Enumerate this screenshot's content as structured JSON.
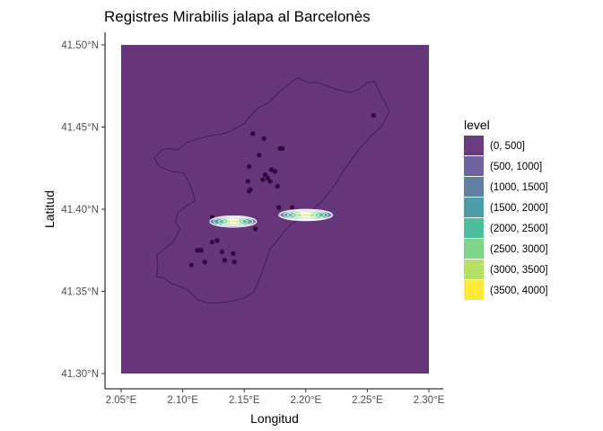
{
  "chart_data": {
    "type": "map",
    "title": "Registres Mirabilis jalapa al Barcelonès",
    "xlabel": "Longitud",
    "ylabel": "Latitud",
    "xlim": [
      2.05,
      2.3
    ],
    "ylim": [
      41.3,
      41.5
    ],
    "x_ticks": [
      2.05,
      2.1,
      2.15,
      2.2,
      2.25,
      2.3
    ],
    "x_tick_labels": [
      "2.05°E",
      "2.10°E",
      "2.15°E",
      "2.20°E",
      "2.25°E",
      "2.30°E"
    ],
    "y_ticks": [
      41.3,
      41.35,
      41.4,
      41.45,
      41.5
    ],
    "y_tick_labels": [
      "41.30°N",
      "41.35°N",
      "41.40°N",
      "41.45°N",
      "41.50°N"
    ],
    "grid": false,
    "legend": {
      "title": "level",
      "placement": "right",
      "entries": [
        "(0, 500]",
        "(500, 1000]",
        "(1000, 1500]",
        "(1500, 2000]",
        "(2000, 2500]",
        "(2500, 3000]",
        "(3000, 3500]",
        "(3500, 4000]"
      ],
      "colors": [
        "#6a3b7e",
        "#6f62a0",
        "#5f7fa5",
        "#4b9ea8",
        "#4dbf9c",
        "#7ed58a",
        "#b5e061",
        "#fde93c"
      ]
    },
    "background_level_color": "#67357a",
    "outline_color": "#3d1a4c",
    "point_color": "#2e0838",
    "boundary": [
      [
        2.079,
        41.372
      ],
      [
        2.092,
        41.38
      ],
      [
        2.098,
        41.388
      ],
      [
        2.094,
        41.392
      ],
      [
        2.096,
        41.398
      ],
      [
        2.105,
        41.403
      ],
      [
        2.11,
        41.405
      ],
      [
        2.108,
        41.411
      ],
      [
        2.104,
        41.418
      ],
      [
        2.101,
        41.422
      ],
      [
        2.091,
        41.423
      ],
      [
        2.081,
        41.426
      ],
      [
        2.077,
        41.431
      ],
      [
        2.083,
        41.436
      ],
      [
        2.088,
        41.437
      ],
      [
        2.096,
        41.436
      ],
      [
        2.104,
        41.441
      ],
      [
        2.118,
        41.444
      ],
      [
        2.126,
        41.445
      ],
      [
        2.133,
        41.446
      ],
      [
        2.14,
        41.448
      ],
      [
        2.15,
        41.452
      ],
      [
        2.155,
        41.457
      ],
      [
        2.162,
        41.462
      ],
      [
        2.17,
        41.465
      ],
      [
        2.178,
        41.471
      ],
      [
        2.186,
        41.476
      ],
      [
        2.193,
        41.48
      ],
      [
        2.202,
        41.477
      ],
      [
        2.21,
        41.477
      ],
      [
        2.217,
        41.475
      ],
      [
        2.225,
        41.473
      ],
      [
        2.23,
        41.472
      ],
      [
        2.237,
        41.471
      ],
      [
        2.243,
        41.473
      ],
      [
        2.25,
        41.477
      ],
      [
        2.256,
        41.478
      ],
      [
        2.261,
        41.469
      ],
      [
        2.268,
        41.46
      ],
      [
        2.262,
        41.451
      ],
      [
        2.252,
        41.444
      ],
      [
        2.244,
        41.437
      ],
      [
        2.238,
        41.431
      ],
      [
        2.232,
        41.425
      ],
      [
        2.227,
        41.419
      ],
      [
        2.221,
        41.412
      ],
      [
        2.212,
        41.404
      ],
      [
        2.203,
        41.398
      ],
      [
        2.196,
        41.394
      ],
      [
        2.19,
        41.392
      ],
      [
        2.183,
        41.387
      ],
      [
        2.177,
        41.381
      ],
      [
        2.171,
        41.376
      ],
      [
        2.168,
        41.369
      ],
      [
        2.163,
        41.359
      ],
      [
        2.158,
        41.35
      ],
      [
        2.15,
        41.346
      ],
      [
        2.14,
        41.344
      ],
      [
        2.13,
        41.343
      ],
      [
        2.12,
        41.343
      ],
      [
        2.112,
        41.345
      ],
      [
        2.104,
        41.351
      ],
      [
        2.095,
        41.354
      ],
      [
        2.09,
        41.355
      ],
      [
        2.085,
        41.358
      ],
      [
        2.079,
        41.359
      ],
      [
        2.08,
        41.366
      ]
    ],
    "points": [
      [
        2.255,
        41.457
      ],
      [
        2.157,
        41.446
      ],
      [
        2.166,
        41.443
      ],
      [
        2.179,
        41.437
      ],
      [
        2.181,
        41.437
      ],
      [
        2.162,
        41.433
      ],
      [
        2.154,
        41.426
      ],
      [
        2.172,
        41.424
      ],
      [
        2.175,
        41.423
      ],
      [
        2.167,
        41.421
      ],
      [
        2.169,
        41.419
      ],
      [
        2.171,
        41.417
      ],
      [
        2.165,
        41.418
      ],
      [
        2.153,
        41.417
      ],
      [
        2.154,
        41.411
      ],
      [
        2.155,
        41.412
      ],
      [
        2.177,
        41.414
      ],
      [
        2.178,
        41.401
      ],
      [
        2.189,
        41.401
      ],
      [
        2.124,
        41.395
      ],
      [
        2.142,
        41.394
      ],
      [
        2.159,
        41.388
      ],
      [
        2.124,
        41.38
      ],
      [
        2.128,
        41.381
      ],
      [
        2.112,
        41.375
      ],
      [
        2.115,
        41.375
      ],
      [
        2.132,
        41.374
      ],
      [
        2.141,
        41.373
      ],
      [
        2.118,
        41.368
      ],
      [
        2.134,
        41.369
      ],
      [
        2.142,
        41.368
      ],
      [
        2.107,
        41.366
      ]
    ],
    "density_blobs": [
      {
        "center": [
          2.141,
          41.3925
        ],
        "half_width": [
          0.019,
          0.019,
          0.016,
          0.012,
          0.008,
          0.005,
          0.0025
        ],
        "half_height": [
          0.0035,
          0.0029,
          0.0024,
          0.0019,
          0.0014,
          0.001,
          0.0006
        ],
        "levels": [
          1,
          2,
          3,
          4,
          5,
          6,
          7
        ]
      },
      {
        "center": [
          2.2,
          41.3965
        ],
        "half_width": [
          0.022,
          0.021,
          0.018,
          0.015,
          0.011,
          0.008,
          0.004
        ],
        "half_height": [
          0.0035,
          0.0031,
          0.0027,
          0.0022,
          0.0017,
          0.0012,
          0.0008
        ],
        "levels": [
          1,
          2,
          3,
          4,
          5,
          6,
          7
        ]
      }
    ]
  }
}
